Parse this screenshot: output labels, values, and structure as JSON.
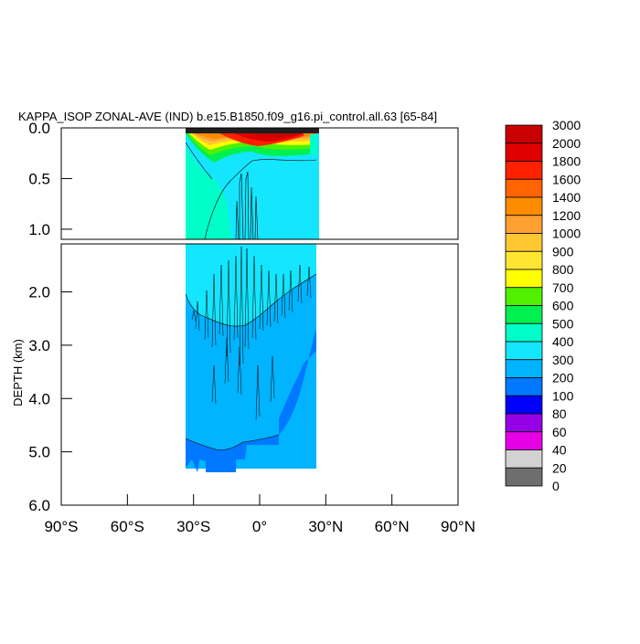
{
  "chart_data": {
    "type": "heatmap",
    "title": "KAPPA_ISOP ZONAL-AVE (IND) b.e15.B1850.f09_g16.pi_control.all.63 [65-84]",
    "xlabel": "",
    "ylabel": "DEPTH (km)",
    "x_ticks": [
      "90°S",
      "60°S",
      "30°S",
      "0°",
      "30°N",
      "60°N",
      "90°N"
    ],
    "x_tick_values": [
      -90,
      -60,
      -30,
      0,
      30,
      60,
      90
    ],
    "xlim": [
      -90,
      90
    ],
    "upper_panel": {
      "ylim": [
        0.0,
        1.1
      ],
      "y_ticks": [
        "0.0",
        "0.5",
        "1.0"
      ],
      "y_tick_values": [
        0.0,
        0.5,
        1.0
      ]
    },
    "lower_panel": {
      "ylim": [
        1.1,
        6.0
      ],
      "y_ticks": [
        "2.0",
        "3.0",
        "4.0",
        "5.0",
        "6.0"
      ],
      "y_tick_values": [
        2.0,
        3.0,
        4.0,
        5.0,
        6.0
      ]
    },
    "data_extent": {
      "lat_min": -34,
      "lat_max": 25,
      "depth_max": 5.4
    },
    "colorbar": {
      "levels": [
        "3000",
        "2000",
        "1800",
        "1600",
        "1400",
        "1200",
        "1000",
        "900",
        "800",
        "700",
        "600",
        "500",
        "400",
        "300",
        "200",
        "100",
        "80",
        "60",
        "40",
        "20",
        "0"
      ],
      "colors": [
        "#c80000",
        "#e00000",
        "#ff2000",
        "#ff6400",
        "#ff8c00",
        "#ffa032",
        "#ffc832",
        "#ffe632",
        "#ffff00",
        "#50f000",
        "#00f050",
        "#00ffc8",
        "#14e6ff",
        "#00b4ff",
        "#0078ff",
        "#0000ff",
        "#9600e6",
        "#e600e6",
        "#d2d2d2",
        "#6e6e6e"
      ]
    }
  }
}
